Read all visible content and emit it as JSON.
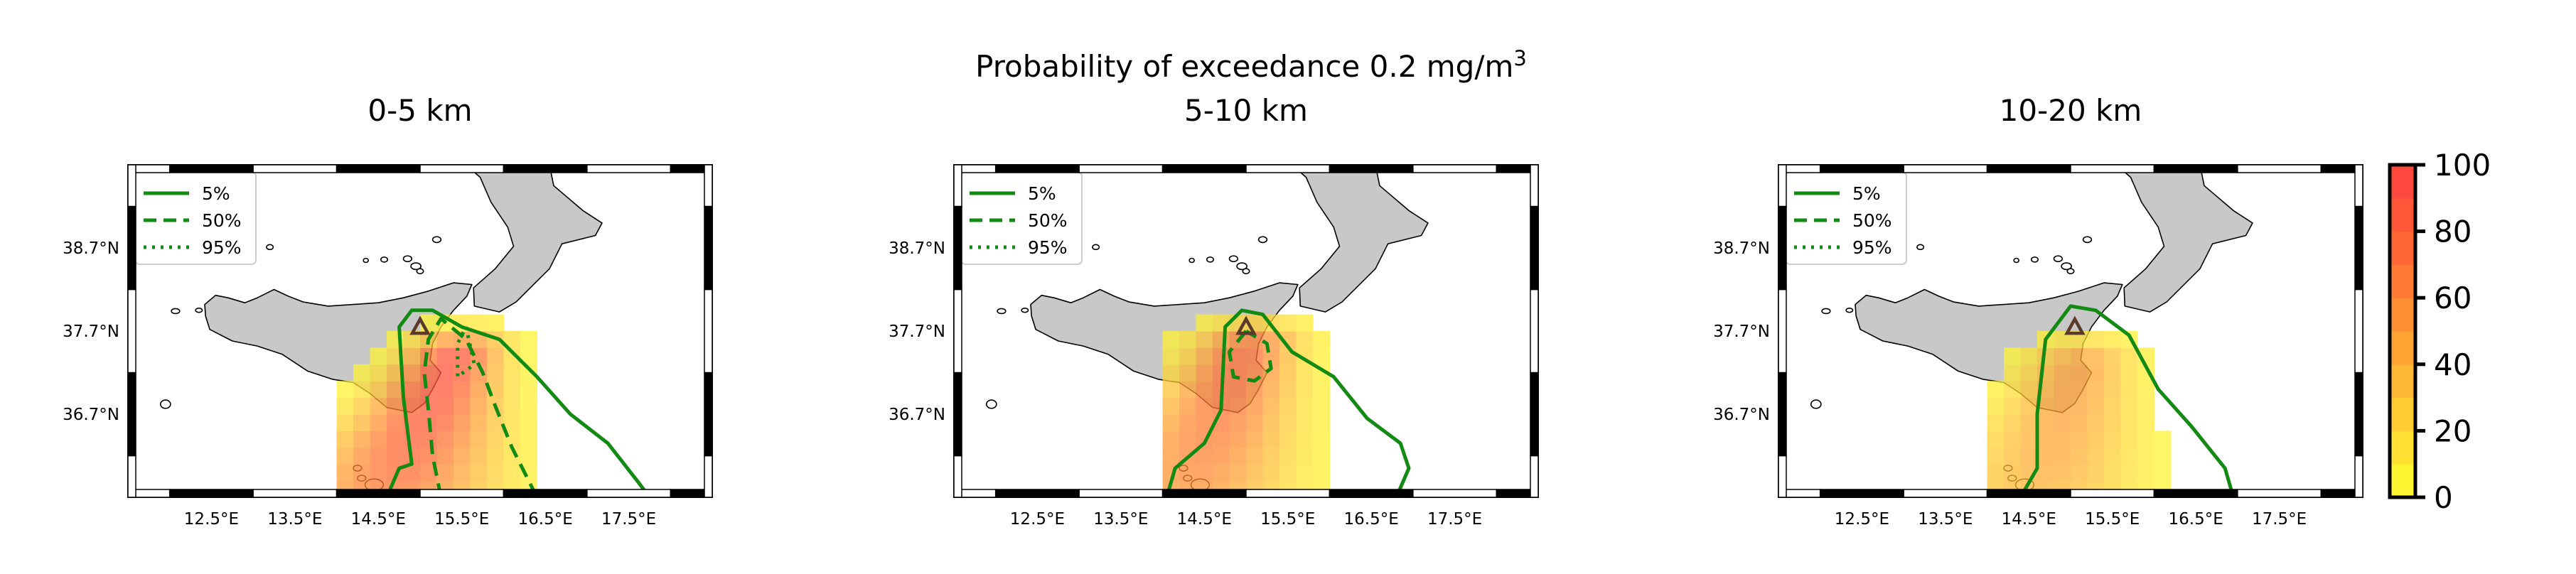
{
  "figure": {
    "title_main": "Probability of exceedance 0.2 mg/m",
    "title_sup": "3"
  },
  "colors": {
    "land": "#c8c8c8",
    "contour": "#138a13",
    "volcano_marker": "#5a3a2a",
    "frame": "#000000"
  },
  "icons": {
    "volcano": "triangle-marker"
  },
  "chart_data": [
    {
      "type": "heatmap",
      "title": "0-5 km",
      "lon_ticks": [
        12.5,
        13.5,
        14.5,
        15.5,
        16.5,
        17.5
      ],
      "lat_ticks": [
        38.7,
        37.7,
        36.7
      ],
      "lon_tick_labels": [
        "12.5°E",
        "13.5°E",
        "14.5°E",
        "15.5°E",
        "16.5°E",
        "17.5°E"
      ],
      "lat_tick_labels": [
        "38.7°N",
        "37.7°N",
        "36.7°N"
      ],
      "xlim": [
        11.5,
        18.5
      ],
      "ylim": [
        35.7,
        39.7
      ],
      "legend": [
        "5%",
        "50%",
        "95%"
      ],
      "vent": {
        "lon": 15.0,
        "lat": 37.75
      },
      "plume": {
        "peak_lon": 15.4,
        "peak_lat": 37.4,
        "drift_lon_per_deg": -0.45,
        "spread": 0.55,
        "peak": 88,
        "widen": 0.35
      },
      "contours": [
        {
          "level": "5%",
          "style": "solid",
          "points": [
            [
              14.6,
              35.7
            ],
            [
              14.75,
              36.05
            ],
            [
              14.9,
              36.1
            ],
            [
              14.8,
              36.9
            ],
            [
              14.75,
              37.75
            ],
            [
              14.9,
              37.95
            ],
            [
              15.15,
              37.95
            ],
            [
              15.5,
              37.75
            ],
            [
              15.95,
              37.6
            ],
            [
              16.4,
              37.15
            ],
            [
              16.8,
              36.7
            ],
            [
              17.25,
              36.35
            ],
            [
              17.6,
              35.9
            ],
            [
              17.75,
              35.7
            ]
          ]
        },
        {
          "level": "50%",
          "style": "dashed",
          "points": [
            [
              15.25,
              35.7
            ],
            [
              15.15,
              36.2
            ],
            [
              15.1,
              36.75
            ],
            [
              15.05,
              37.2
            ],
            [
              15.1,
              37.6
            ],
            [
              15.25,
              37.85
            ],
            [
              15.55,
              37.6
            ],
            [
              15.75,
              37.2
            ],
            [
              15.9,
              36.8
            ],
            [
              16.1,
              36.3
            ],
            [
              16.4,
              35.7
            ]
          ]
        },
        {
          "level": "95%",
          "style": "dotted",
          "points": [
            [
              15.55,
              37.75
            ],
            [
              15.65,
              37.3
            ],
            [
              15.45,
              37.15
            ],
            [
              15.45,
              37.55
            ],
            [
              15.55,
              37.75
            ]
          ]
        }
      ]
    },
    {
      "type": "heatmap",
      "title": "5-10 km",
      "lon_ticks": [
        12.5,
        13.5,
        14.5,
        15.5,
        16.5,
        17.5
      ],
      "lat_ticks": [
        38.7,
        37.7,
        36.7
      ],
      "lon_tick_labels": [
        "12.5°E",
        "13.5°E",
        "14.5°E",
        "15.5°E",
        "16.5°E",
        "17.5°E"
      ],
      "lat_tick_labels": [
        "38.7°N",
        "37.7°N",
        "36.7°N"
      ],
      "xlim": [
        11.5,
        18.5
      ],
      "ylim": [
        35.7,
        39.7
      ],
      "legend": [
        "5%",
        "50%",
        "95%"
      ],
      "vent": {
        "lon": 15.0,
        "lat": 37.75
      },
      "plume": {
        "peak_lon": 15.0,
        "peak_lat": 37.5,
        "drift_lon_per_deg": -0.4,
        "spread": 0.6,
        "peak": 72,
        "widen": 0.3
      },
      "contours": [
        {
          "level": "5%",
          "style": "solid",
          "points": [
            [
              14.05,
              35.7
            ],
            [
              14.15,
              36.05
            ],
            [
              14.5,
              36.35
            ],
            [
              14.7,
              36.75
            ],
            [
              14.75,
              37.75
            ],
            [
              14.95,
              37.95
            ],
            [
              15.2,
              37.9
            ],
            [
              15.55,
              37.45
            ],
            [
              16.05,
              37.15
            ],
            [
              16.45,
              36.65
            ],
            [
              16.85,
              36.35
            ],
            [
              16.95,
              36.05
            ],
            [
              16.8,
              35.7
            ]
          ]
        },
        {
          "level": "50%",
          "style": "dashed",
          "points": [
            [
              15.0,
              37.7
            ],
            [
              14.8,
              37.45
            ],
            [
              14.85,
              37.15
            ],
            [
              15.1,
              37.1
            ],
            [
              15.3,
              37.25
            ],
            [
              15.25,
              37.55
            ],
            [
              15.0,
              37.7
            ]
          ]
        }
      ]
    },
    {
      "type": "heatmap",
      "title": "10-20 km",
      "lon_ticks": [
        12.5,
        13.5,
        14.5,
        15.5,
        16.5,
        17.5
      ],
      "lat_ticks": [
        38.7,
        37.7,
        36.7
      ],
      "lon_tick_labels": [
        "12.5°E",
        "13.5°E",
        "14.5°E",
        "15.5°E",
        "16.5°E",
        "17.5°E"
      ],
      "lat_tick_labels": [
        "38.7°N",
        "37.7°N",
        "36.7°N"
      ],
      "xlim": [
        11.5,
        18.5
      ],
      "ylim": [
        35.7,
        39.7
      ],
      "legend": [
        "5%",
        "50%",
        "95%"
      ],
      "vent": {
        "lon": 15.05,
        "lat": 37.75
      },
      "plume": {
        "peak_lon": 15.1,
        "peak_lat": 37.3,
        "drift_lon_per_deg": -0.3,
        "spread": 0.6,
        "peak": 48,
        "widen": 0.3
      },
      "contours": [
        {
          "level": "5%",
          "style": "solid",
          "points": [
            [
              14.4,
              35.7
            ],
            [
              14.6,
              36.05
            ],
            [
              14.6,
              36.7
            ],
            [
              14.7,
              37.6
            ],
            [
              15.0,
              38.0
            ],
            [
              15.3,
              37.95
            ],
            [
              15.7,
              37.65
            ],
            [
              16.05,
              37.0
            ],
            [
              16.45,
              36.55
            ],
            [
              16.85,
              36.05
            ],
            [
              16.95,
              35.7
            ]
          ]
        }
      ]
    }
  ],
  "colorbar": {
    "ticks": [
      0,
      20,
      40,
      60,
      80,
      100
    ],
    "tick_labels": [
      "0",
      "20",
      "40",
      "60",
      "80",
      "100"
    ],
    "range": [
      0,
      100
    ],
    "colors": [
      "#ffff33",
      "#ffcc33",
      "#ff9933",
      "#ff6633",
      "#ff4040"
    ]
  }
}
